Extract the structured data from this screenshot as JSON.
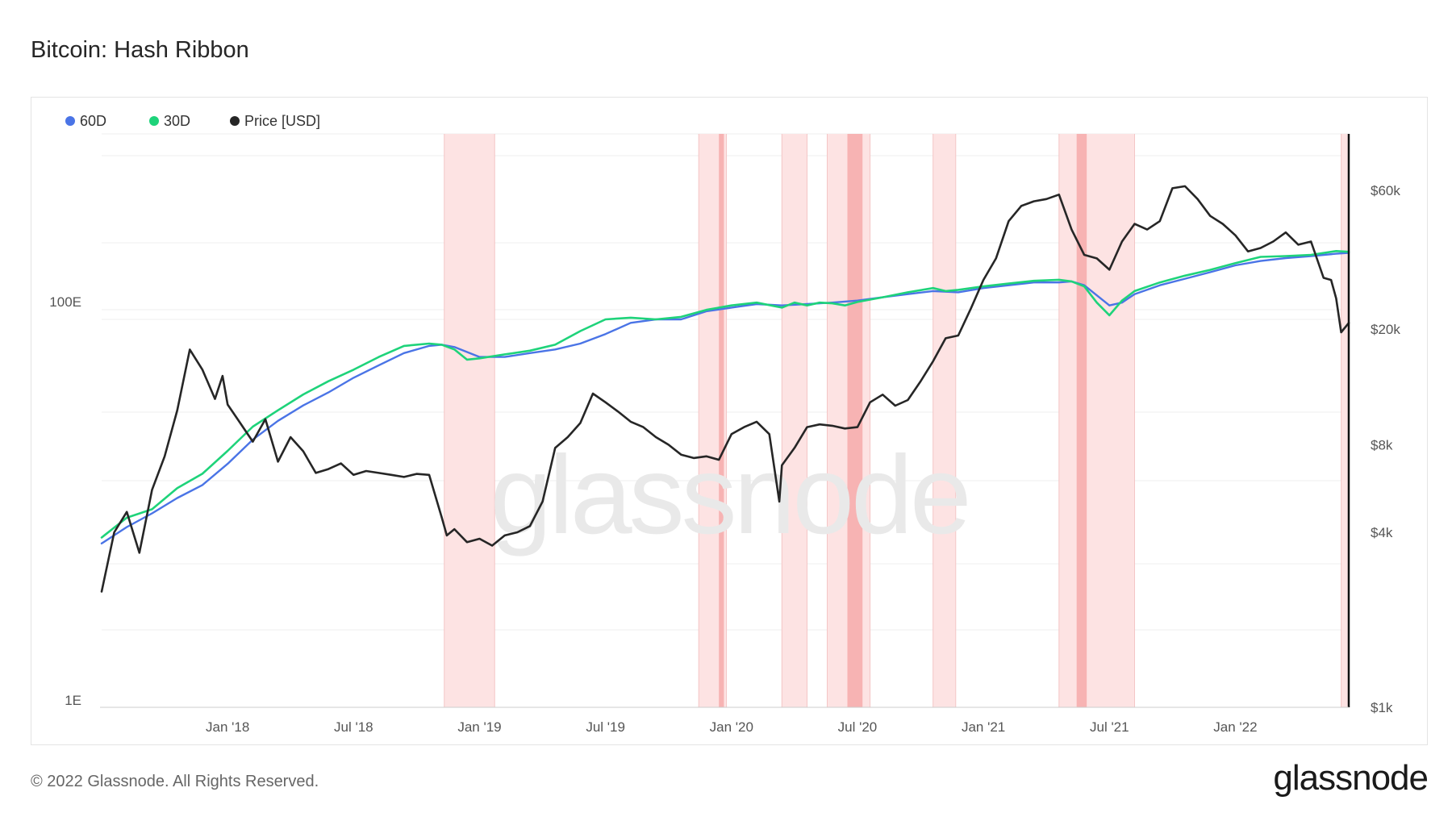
{
  "title": "Bitcoin: Hash Ribbon",
  "footer": "© 2022 Glassnode. All Rights Reserved.",
  "brand": "glassnode",
  "watermark": "glassnode",
  "colors": {
    "ma60": "#4a74e6",
    "ma30": "#1ed37a",
    "price": "#262626",
    "band_light": "#fde3e3",
    "band_dark": "#f7b3b3"
  },
  "chart_data": {
    "type": "line",
    "title": "Bitcoin: Hash Ribbon",
    "x_range": [
      2017.5,
      2022.45
    ],
    "x_ticks": [
      {
        "label": "Jan '18",
        "t": 2018.0
      },
      {
        "label": "Jul '18",
        "t": 2018.5
      },
      {
        "label": "Jan '19",
        "t": 2019.0
      },
      {
        "label": "Jul '19",
        "t": 2019.5
      },
      {
        "label": "Jan '20",
        "t": 2020.0
      },
      {
        "label": "Jul '20",
        "t": 2020.5
      },
      {
        "label": "Jan '21",
        "t": 2021.0
      },
      {
        "label": "Jul '21",
        "t": 2021.5
      },
      {
        "label": "Jan '22",
        "t": 2022.0
      }
    ],
    "left_axis": {
      "scale": "log",
      "ticks": [
        "1E",
        "100E"
      ]
    },
    "right_axis": {
      "scale": "log",
      "unit": "USD",
      "ticks": [
        "$1k",
        "$4k",
        "$8k",
        "$20k",
        "$60k"
      ]
    },
    "legend": [
      {
        "name": "60D",
        "color": "#4a74e6"
      },
      {
        "name": "30D",
        "color": "#1ed37a"
      },
      {
        "name": "Price [USD]",
        "color": "#262626"
      }
    ],
    "capitulation_bands": [
      {
        "start": 2018.86,
        "end": 2019.06,
        "dark": []
      },
      {
        "start": 2019.87,
        "end": 2019.98,
        "dark": [
          [
            2019.95,
            2019.97
          ]
        ]
      },
      {
        "start": 2020.2,
        "end": 2020.3,
        "dark": []
      },
      {
        "start": 2020.38,
        "end": 2020.55,
        "dark": [
          [
            2020.46,
            2020.52
          ]
        ]
      },
      {
        "start": 2020.8,
        "end": 2020.89,
        "dark": []
      },
      {
        "start": 2021.3,
        "end": 2021.6,
        "dark": [
          [
            2021.37,
            2021.41
          ]
        ]
      },
      {
        "start": 2022.42,
        "end": 2022.45,
        "dark": []
      }
    ],
    "series": [
      {
        "name": "Price [USD]",
        "unit": "USD",
        "axis": "right",
        "x": [
          2017.5,
          2017.55,
          2017.6,
          2017.65,
          2017.7,
          2017.75,
          2017.8,
          2017.85,
          2017.9,
          2017.95,
          2017.98,
          2018.0,
          2018.05,
          2018.1,
          2018.15,
          2018.2,
          2018.25,
          2018.3,
          2018.35,
          2018.4,
          2018.45,
          2018.5,
          2018.55,
          2018.6,
          2018.65,
          2018.7,
          2018.75,
          2018.8,
          2018.85,
          2018.87,
          2018.9,
          2018.95,
          2019.0,
          2019.05,
          2019.1,
          2019.15,
          2019.2,
          2019.25,
          2019.3,
          2019.35,
          2019.4,
          2019.45,
          2019.5,
          2019.55,
          2019.6,
          2019.65,
          2019.7,
          2019.75,
          2019.8,
          2019.85,
          2019.9,
          2019.95,
          2020.0,
          2020.05,
          2020.1,
          2020.15,
          2020.19,
          2020.2,
          2020.25,
          2020.3,
          2020.35,
          2020.4,
          2020.45,
          2020.5,
          2020.55,
          2020.6,
          2020.65,
          2020.7,
          2020.75,
          2020.8,
          2020.85,
          2020.9,
          2020.95,
          2021.0,
          2021.05,
          2021.1,
          2021.15,
          2021.2,
          2021.25,
          2021.3,
          2021.35,
          2021.4,
          2021.45,
          2021.5,
          2021.55,
          2021.6,
          2021.65,
          2021.7,
          2021.75,
          2021.8,
          2021.85,
          2021.9,
          2021.95,
          2022.0,
          2022.05,
          2022.1,
          2022.15,
          2022.2,
          2022.25,
          2022.3,
          2022.35,
          2022.38,
          2022.4,
          2022.42,
          2022.45
        ],
        "values": [
          2500,
          4000,
          4700,
          3400,
          5600,
          7300,
          10500,
          17000,
          14500,
          11500,
          13800,
          11000,
          9500,
          8200,
          9800,
          7000,
          8500,
          7600,
          6400,
          6600,
          6900,
          6300,
          6500,
          6400,
          6300,
          6200,
          6350,
          6300,
          4500,
          3900,
          4100,
          3700,
          3800,
          3600,
          3900,
          4000,
          4200,
          5100,
          7800,
          8500,
          9500,
          12000,
          11200,
          10400,
          9600,
          9200,
          8500,
          8000,
          7400,
          7200,
          7300,
          7100,
          8700,
          9200,
          9600,
          8700,
          5100,
          6800,
          7800,
          9200,
          9400,
          9300,
          9100,
          9200,
          11200,
          11900,
          10900,
          11400,
          13200,
          15500,
          18600,
          19000,
          23500,
          29500,
          35000,
          47000,
          53000,
          55000,
          56000,
          58000,
          44000,
          36000,
          35000,
          32000,
          40000,
          46000,
          44000,
          47000,
          61000,
          62000,
          56000,
          49000,
          46000,
          42000,
          37000,
          38000,
          40000,
          43000,
          39000,
          40000,
          30000,
          29500,
          25500,
          19500,
          21000
        ]
      },
      {
        "name": "60D",
        "unit": "E",
        "axis": "left",
        "x": [
          2017.5,
          2017.6,
          2017.7,
          2017.8,
          2017.9,
          2018.0,
          2018.1,
          2018.2,
          2018.3,
          2018.4,
          2018.5,
          2018.6,
          2018.7,
          2018.8,
          2018.85,
          2018.9,
          2019.0,
          2019.1,
          2019.2,
          2019.3,
          2019.4,
          2019.5,
          2019.6,
          2019.7,
          2019.8,
          2019.9,
          2020.0,
          2020.1,
          2020.2,
          2020.3,
          2020.4,
          2020.5,
          2020.6,
          2020.7,
          2020.8,
          2020.9,
          2021.0,
          2021.1,
          2021.2,
          2021.3,
          2021.35,
          2021.4,
          2021.45,
          2021.5,
          2021.55,
          2021.6,
          2021.7,
          2021.8,
          2021.9,
          2022.0,
          2022.1,
          2022.2,
          2022.3,
          2022.4,
          2022.45
        ],
        "values": [
          7,
          8.5,
          10,
          12,
          14,
          18,
          24,
          30,
          36,
          42,
          50,
          58,
          67,
          73,
          74,
          72,
          64,
          64,
          67,
          70,
          75,
          84,
          96,
          100,
          100,
          110,
          115,
          120,
          118,
          120,
          122,
          125,
          130,
          135,
          140,
          138,
          145,
          150,
          155,
          155,
          157,
          150,
          133,
          118,
          122,
          135,
          150,
          162,
          175,
          190,
          200,
          207,
          212,
          218,
          220
        ]
      },
      {
        "name": "30D",
        "unit": "E",
        "axis": "left",
        "x": [
          2017.5,
          2017.6,
          2017.7,
          2017.8,
          2017.9,
          2018.0,
          2018.1,
          2018.2,
          2018.3,
          2018.4,
          2018.5,
          2018.6,
          2018.7,
          2018.8,
          2018.85,
          2018.9,
          2018.95,
          2019.0,
          2019.1,
          2019.2,
          2019.3,
          2019.4,
          2019.5,
          2019.6,
          2019.7,
          2019.8,
          2019.9,
          2020.0,
          2020.1,
          2020.2,
          2020.25,
          2020.3,
          2020.35,
          2020.4,
          2020.45,
          2020.5,
          2020.6,
          2020.7,
          2020.8,
          2020.85,
          2020.9,
          2021.0,
          2021.1,
          2021.2,
          2021.3,
          2021.35,
          2021.4,
          2021.45,
          2021.5,
          2021.55,
          2021.6,
          2021.7,
          2021.8,
          2021.9,
          2022.0,
          2022.1,
          2022.2,
          2022.3,
          2022.4,
          2022.45
        ],
        "values": [
          7.5,
          9.5,
          10.5,
          13.5,
          16,
          21,
          28,
          34,
          41,
          48,
          55,
          64,
          73,
          75,
          74,
          70,
          62,
          63,
          66,
          69,
          74,
          87,
          100,
          102,
          100,
          103,
          112,
          118,
          122,
          115,
          122,
          118,
          122,
          121,
          118,
          123,
          130,
          138,
          145,
          140,
          142,
          148,
          153,
          158,
          160,
          157,
          148,
          122,
          105,
          125,
          140,
          155,
          168,
          180,
          195,
          210,
          212,
          215,
          225,
          223
        ]
      }
    ]
  }
}
